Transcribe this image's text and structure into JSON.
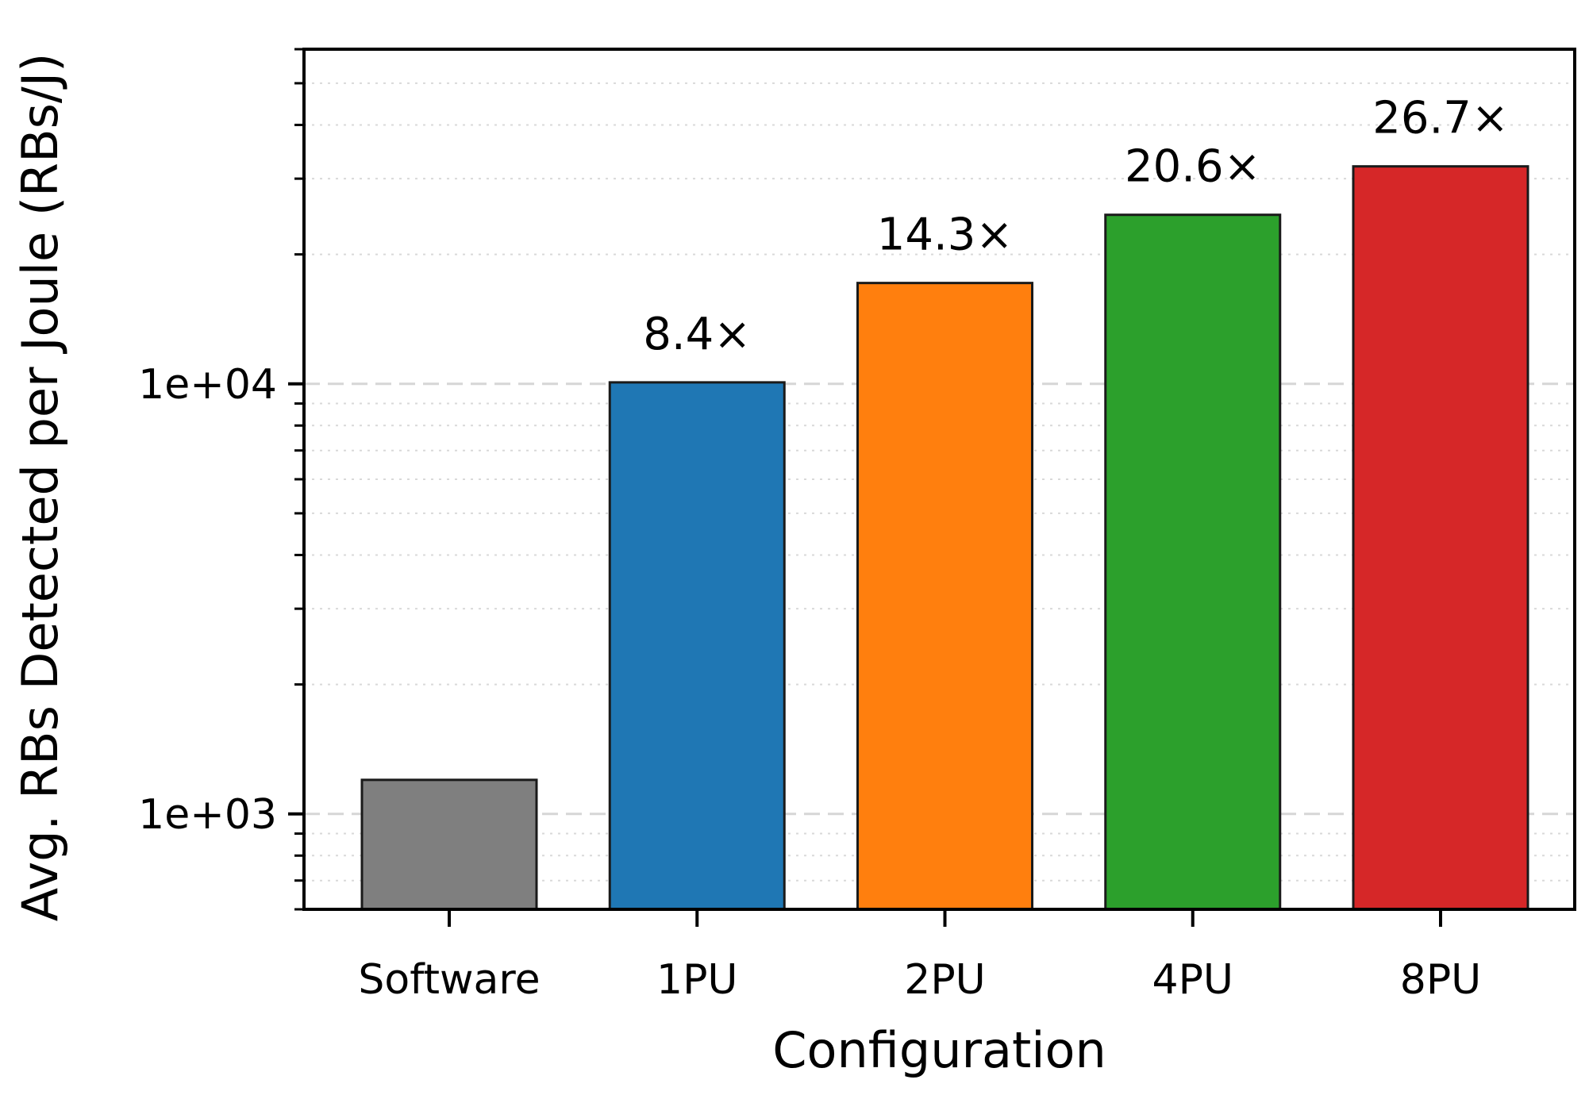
{
  "chart_data": {
    "type": "bar",
    "categories": [
      "Software",
      "1PU",
      "2PU",
      "4PU",
      "8PU"
    ],
    "values": [
      1200,
      10080,
      17160,
      24720,
      32040
    ],
    "bar_labels": [
      "",
      "8.4×",
      "14.3×",
      "20.6×",
      "26.7×"
    ],
    "colors": [
      "#7f7f7f",
      "#1f77b4",
      "#ff7f0e",
      "#2ca02c",
      "#d62728"
    ],
    "title": "",
    "xlabel": "Configuration",
    "ylabel": "Avg. RBs Detected per Joule (RBs/J)",
    "yscale": "log",
    "ylim": [
      600,
      60000
    ],
    "y_tick_labels": [
      {
        "value": 1000,
        "label": "1e+03"
      },
      {
        "value": 10000,
        "label": "1e+04"
      }
    ],
    "grid": {
      "major": "dashed",
      "minor": "dotted"
    },
    "legend": "none"
  }
}
